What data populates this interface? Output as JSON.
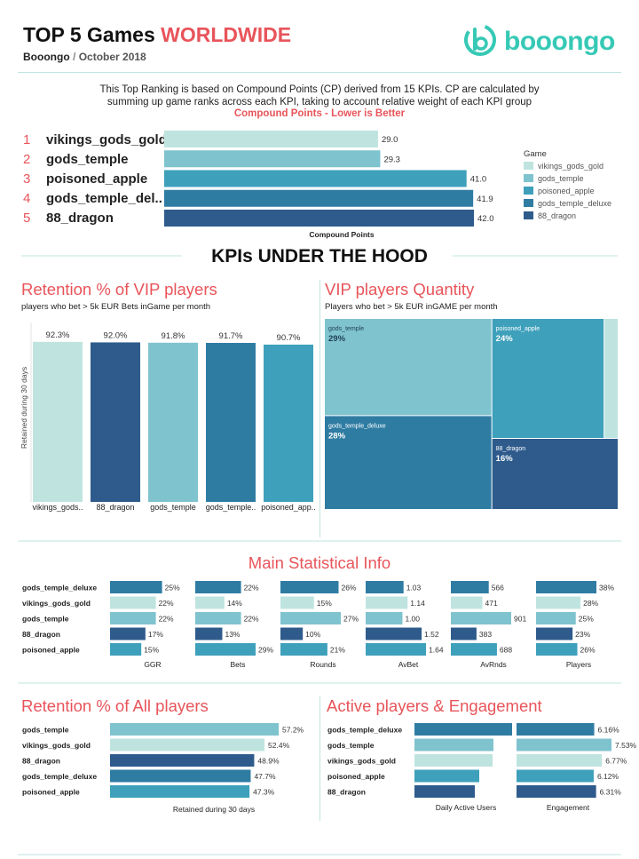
{
  "colors": {
    "vikings_gods_gold": "#bfe4df",
    "gods_temple": "#7fc3ce",
    "poisoned_apple": "#3ea0bb",
    "gods_temple_deluxe": "#2f7ca3",
    "88_dragon": "#2e5b8c",
    "accent": "#e8545a",
    "brand": "#36c9b5"
  },
  "header": {
    "title_main": "TOP 5 Games ",
    "title_accent": "WORLDWIDE",
    "company": "Booongo",
    "separator": "/",
    "date": "October 2018",
    "logo_text": "booongo"
  },
  "intro": {
    "line1": "This Top Ranking is based on Compound Points (CP) derived from 15 KPIs. CP are calculated by",
    "line2": "summing up game ranks across each KPI, taking to account relative weight of each KPI group",
    "highlight": "Compound  Points - Lower is Better"
  },
  "ranking": {
    "numbers": [
      "1",
      "2",
      "3",
      "4",
      "5"
    ],
    "names": [
      "vikings_gods_gold",
      "gods_temple",
      "poisoned_apple",
      "gods_temple_del..",
      "88_dragon"
    ]
  },
  "legend": {
    "title": "Game",
    "items": [
      "vikings_gods_gold",
      "gods_temple",
      "poisoned_apple",
      "gods_temple_deluxe",
      "88_dragon"
    ]
  },
  "kpi_banner": "KPIs UNDER THE HOOD",
  "sections": {
    "vip_retention": {
      "title": "Retention % of VIP players",
      "subtitle": "players who bet > 5k EUR Bets inGame per month"
    },
    "vip_quantity": {
      "title": "VIP players Quantity",
      "subtitle": "Players who bet > 5k EUR inGAME per month"
    },
    "main_stats": {
      "title": "Main Statistical Info"
    },
    "all_retention": {
      "title": "Retention % of All players"
    },
    "active": {
      "title": "Active players & Engagement"
    }
  },
  "chart_data": [
    {
      "id": "compound_points",
      "type": "bar",
      "orientation": "horizontal",
      "categories": [
        "vikings_gods_gold",
        "gods_temple",
        "poisoned_apple",
        "gods_temple_deluxe",
        "88_dragon"
      ],
      "values": [
        29.0,
        29.3,
        41.0,
        41.9,
        42.0
      ],
      "labels": [
        "29.0",
        "29.3",
        "41.0",
        "41.9",
        "42.0"
      ],
      "xlabel": "Compound Points",
      "xlim": [
        0,
        42
      ]
    },
    {
      "id": "vip_retention",
      "type": "bar",
      "categories": [
        "vikings_gods..",
        "88_dragon",
        "gods_temple",
        "gods_temple..",
        "poisoned_app.."
      ],
      "series_keys": [
        "vikings_gods_gold",
        "88_dragon",
        "gods_temple",
        "gods_temple_deluxe",
        "poisoned_apple"
      ],
      "values": [
        92.3,
        92.0,
        91.8,
        91.7,
        90.7
      ],
      "labels": [
        "92.3%",
        "92.0%",
        "91.8%",
        "91.7%",
        "90.7%"
      ],
      "ylabel": "Retained during 30 days",
      "ylim": [
        0,
        100
      ]
    },
    {
      "id": "vip_quantity",
      "type": "treemap",
      "items": [
        {
          "name": "gods_temple",
          "value": 29,
          "label": "29%"
        },
        {
          "name": "poisoned_apple",
          "value": 24,
          "label": "24%"
        },
        {
          "name": "vikings_gods_gold",
          "value": 3,
          "label": ""
        },
        {
          "name": "gods_temple_deluxe",
          "value": 28,
          "label": "28%"
        },
        {
          "name": "88_dragon",
          "value": 16,
          "label": "16%"
        }
      ]
    },
    {
      "id": "main_stats",
      "type": "bar",
      "orientation": "horizontal",
      "categories": [
        "gods_temple_deluxe",
        "vikings_gods_gold",
        "gods_temple",
        "88_dragon",
        "poisoned_apple"
      ],
      "series_keys": [
        "gods_temple_deluxe",
        "vikings_gods_gold",
        "gods_temple",
        "88_dragon",
        "poisoned_apple"
      ],
      "panels": [
        {
          "name": "GGR",
          "values": [
            25,
            22,
            22,
            17,
            15
          ],
          "labels": [
            "25%",
            "22%",
            "22%",
            "17%",
            "15%"
          ],
          "max": 29
        },
        {
          "name": "Bets",
          "values": [
            22,
            14,
            22,
            13,
            29
          ],
          "labels": [
            "22%",
            "14%",
            "22%",
            "13%",
            "29%"
          ],
          "max": 29
        },
        {
          "name": "Rounds",
          "values": [
            26,
            15,
            27,
            10,
            21
          ],
          "labels": [
            "26%",
            "15%",
            "27%",
            "10%",
            "21%"
          ],
          "max": 27
        },
        {
          "name": "AvBet",
          "values": [
            1.03,
            1.14,
            1.0,
            1.52,
            1.64
          ],
          "labels": [
            "1.03",
            "1.14",
            "1.00",
            "1.52",
            "1.64"
          ],
          "max": 1.64
        },
        {
          "name": "AvRnds",
          "values": [
            566,
            471,
            901,
            383,
            688
          ],
          "labels": [
            "566",
            "471",
            "901",
            "383",
            "688"
          ],
          "max": 901
        },
        {
          "name": "Players",
          "values": [
            38,
            28,
            25,
            23,
            26
          ],
          "labels": [
            "38%",
            "28%",
            "25%",
            "23%",
            "26%"
          ],
          "max": 38
        }
      ]
    },
    {
      "id": "all_retention",
      "type": "bar",
      "orientation": "horizontal",
      "categories": [
        "gods_temple",
        "vikings_gods_gold",
        "88_dragon",
        "gods_temple_deluxe",
        "poisoned_apple"
      ],
      "series_keys": [
        "gods_temple",
        "vikings_gods_gold",
        "88_dragon",
        "gods_temple_deluxe",
        "poisoned_apple"
      ],
      "values": [
        57.2,
        52.4,
        48.9,
        47.7,
        47.3
      ],
      "labels": [
        "57.2%",
        "52.4%",
        "48.9%",
        "47.7%",
        "47.3%"
      ],
      "xlabel": "Retained during 30 days",
      "xlim": [
        0,
        57.2
      ]
    },
    {
      "id": "active",
      "type": "bar",
      "orientation": "horizontal",
      "categories": [
        "gods_temple_deluxe",
        "gods_temple",
        "vikings_gods_gold",
        "poisoned_apple",
        "88_dragon"
      ],
      "series_keys": [
        "gods_temple_deluxe",
        "gods_temple",
        "vikings_gods_gold",
        "poisoned_apple",
        "88_dragon"
      ],
      "panels": [
        {
          "name": "Daily Active Users",
          "values": [
            110,
            89,
            88,
            73,
            68
          ],
          "labels": [
            "",
            "",
            "",
            "",
            ""
          ],
          "max": 110
        },
        {
          "name": "Engagement",
          "values": [
            6.16,
            7.53,
            6.77,
            6.12,
            6.31
          ],
          "labels": [
            "6.16%",
            "7.53%",
            "6.77%",
            "6.12%",
            "6.31%"
          ],
          "max": 7.53
        }
      ]
    }
  ]
}
